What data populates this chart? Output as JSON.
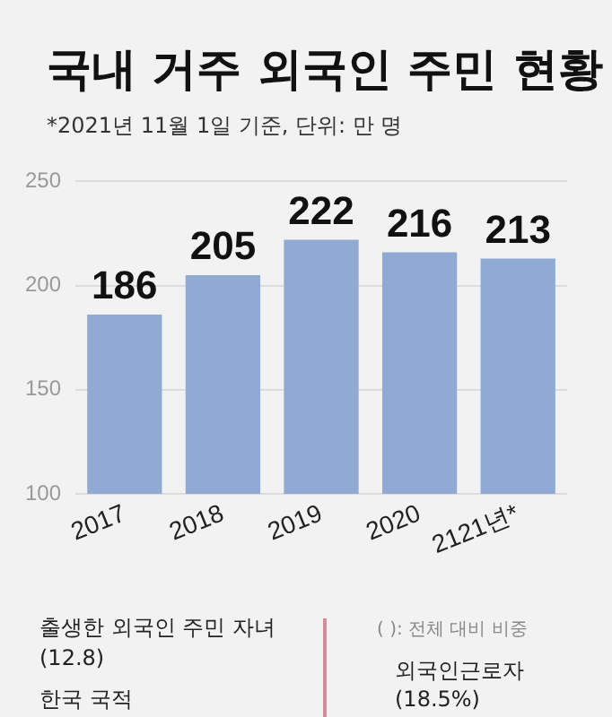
{
  "chart_data": {
    "type": "bar",
    "title": "국내 거주 외국인 주민 현황",
    "subtitle": "*2021년 11월 1일 기준, 단위: 만 명",
    "categories": [
      "2017",
      "2018",
      "2019",
      "2020",
      "2121년*"
    ],
    "values": [
      186,
      205,
      222,
      216,
      213
    ],
    "color": "#91aad3",
    "ylim": [
      100,
      250
    ],
    "yticks": [
      100,
      150,
      200,
      250
    ],
    "grid": "y",
    "data_labels": true,
    "annotations": [
      "출생한 외국인 주민 자녀(12.8)",
      "( ): 전체 대비 비중",
      "외국인근로자 (18.5%)",
      "한국 국적"
    ]
  }
}
